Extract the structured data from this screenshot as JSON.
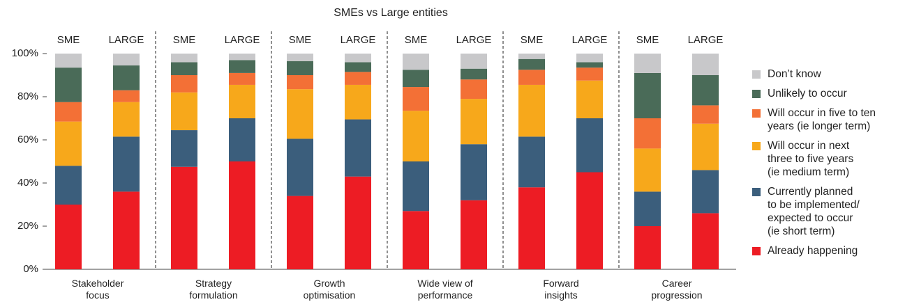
{
  "chart_data": {
    "type": "stacked_bar",
    "title": "SMEs vs Large entities",
    "groups": [
      "Stakeholder\nfocus",
      "Strategy\nformulation",
      "Growth\noptimisation",
      "Wide view of\nperformance",
      "Forward\ninsights",
      "Career\nprogression"
    ],
    "subcategories": [
      "SME",
      "LARGE"
    ],
    "series": [
      {
        "name": "Already happening",
        "color": "#ed1c24",
        "values": [
          30,
          36,
          47.5,
          50,
          34,
          43,
          27,
          32,
          38,
          45,
          20,
          26
        ]
      },
      {
        "name": "Currently planned\nto be implemented/\nexpected to occur\n(ie short term)",
        "color": "#3b5e7c",
        "values": [
          18,
          25.5,
          17,
          20,
          26.5,
          26.5,
          23,
          26,
          23.5,
          25,
          16,
          20
        ]
      },
      {
        "name": "Will occur in next\nthree to five years\n(ie medium term)",
        "color": "#f7a81b",
        "values": [
          20.5,
          16,
          17.5,
          15.5,
          23,
          16,
          23.5,
          21,
          24,
          17.5,
          20,
          21.5
        ]
      },
      {
        "name": "Will occur in five to ten\nyears (ie longer term)",
        "color": "#f37036",
        "values": [
          9,
          5.5,
          8,
          5.5,
          6.5,
          6,
          11,
          9,
          7,
          6,
          14,
          8.5
        ]
      },
      {
        "name": "Unlikely to occur",
        "color": "#4a6b58",
        "values": [
          16,
          11.5,
          6,
          6,
          6.5,
          4.5,
          8,
          5,
          5,
          2.5,
          21,
          14
        ]
      },
      {
        "name": "Don’t know",
        "color": "#c8c8ca",
        "values": [
          6.5,
          5.5,
          4,
          3,
          3.5,
          4,
          7.5,
          7,
          2.5,
          4,
          9,
          10
        ]
      }
    ],
    "ylim": [
      0,
      100
    ],
    "yticks": [
      {
        "value": 0,
        "label": "0%"
      },
      {
        "value": 20,
        "label": "20%"
      },
      {
        "value": 40,
        "label": "40%"
      },
      {
        "value": 60,
        "label": "60%"
      },
      {
        "value": 80,
        "label": "80%"
      },
      {
        "value": 100,
        "label": "100%"
      }
    ]
  }
}
